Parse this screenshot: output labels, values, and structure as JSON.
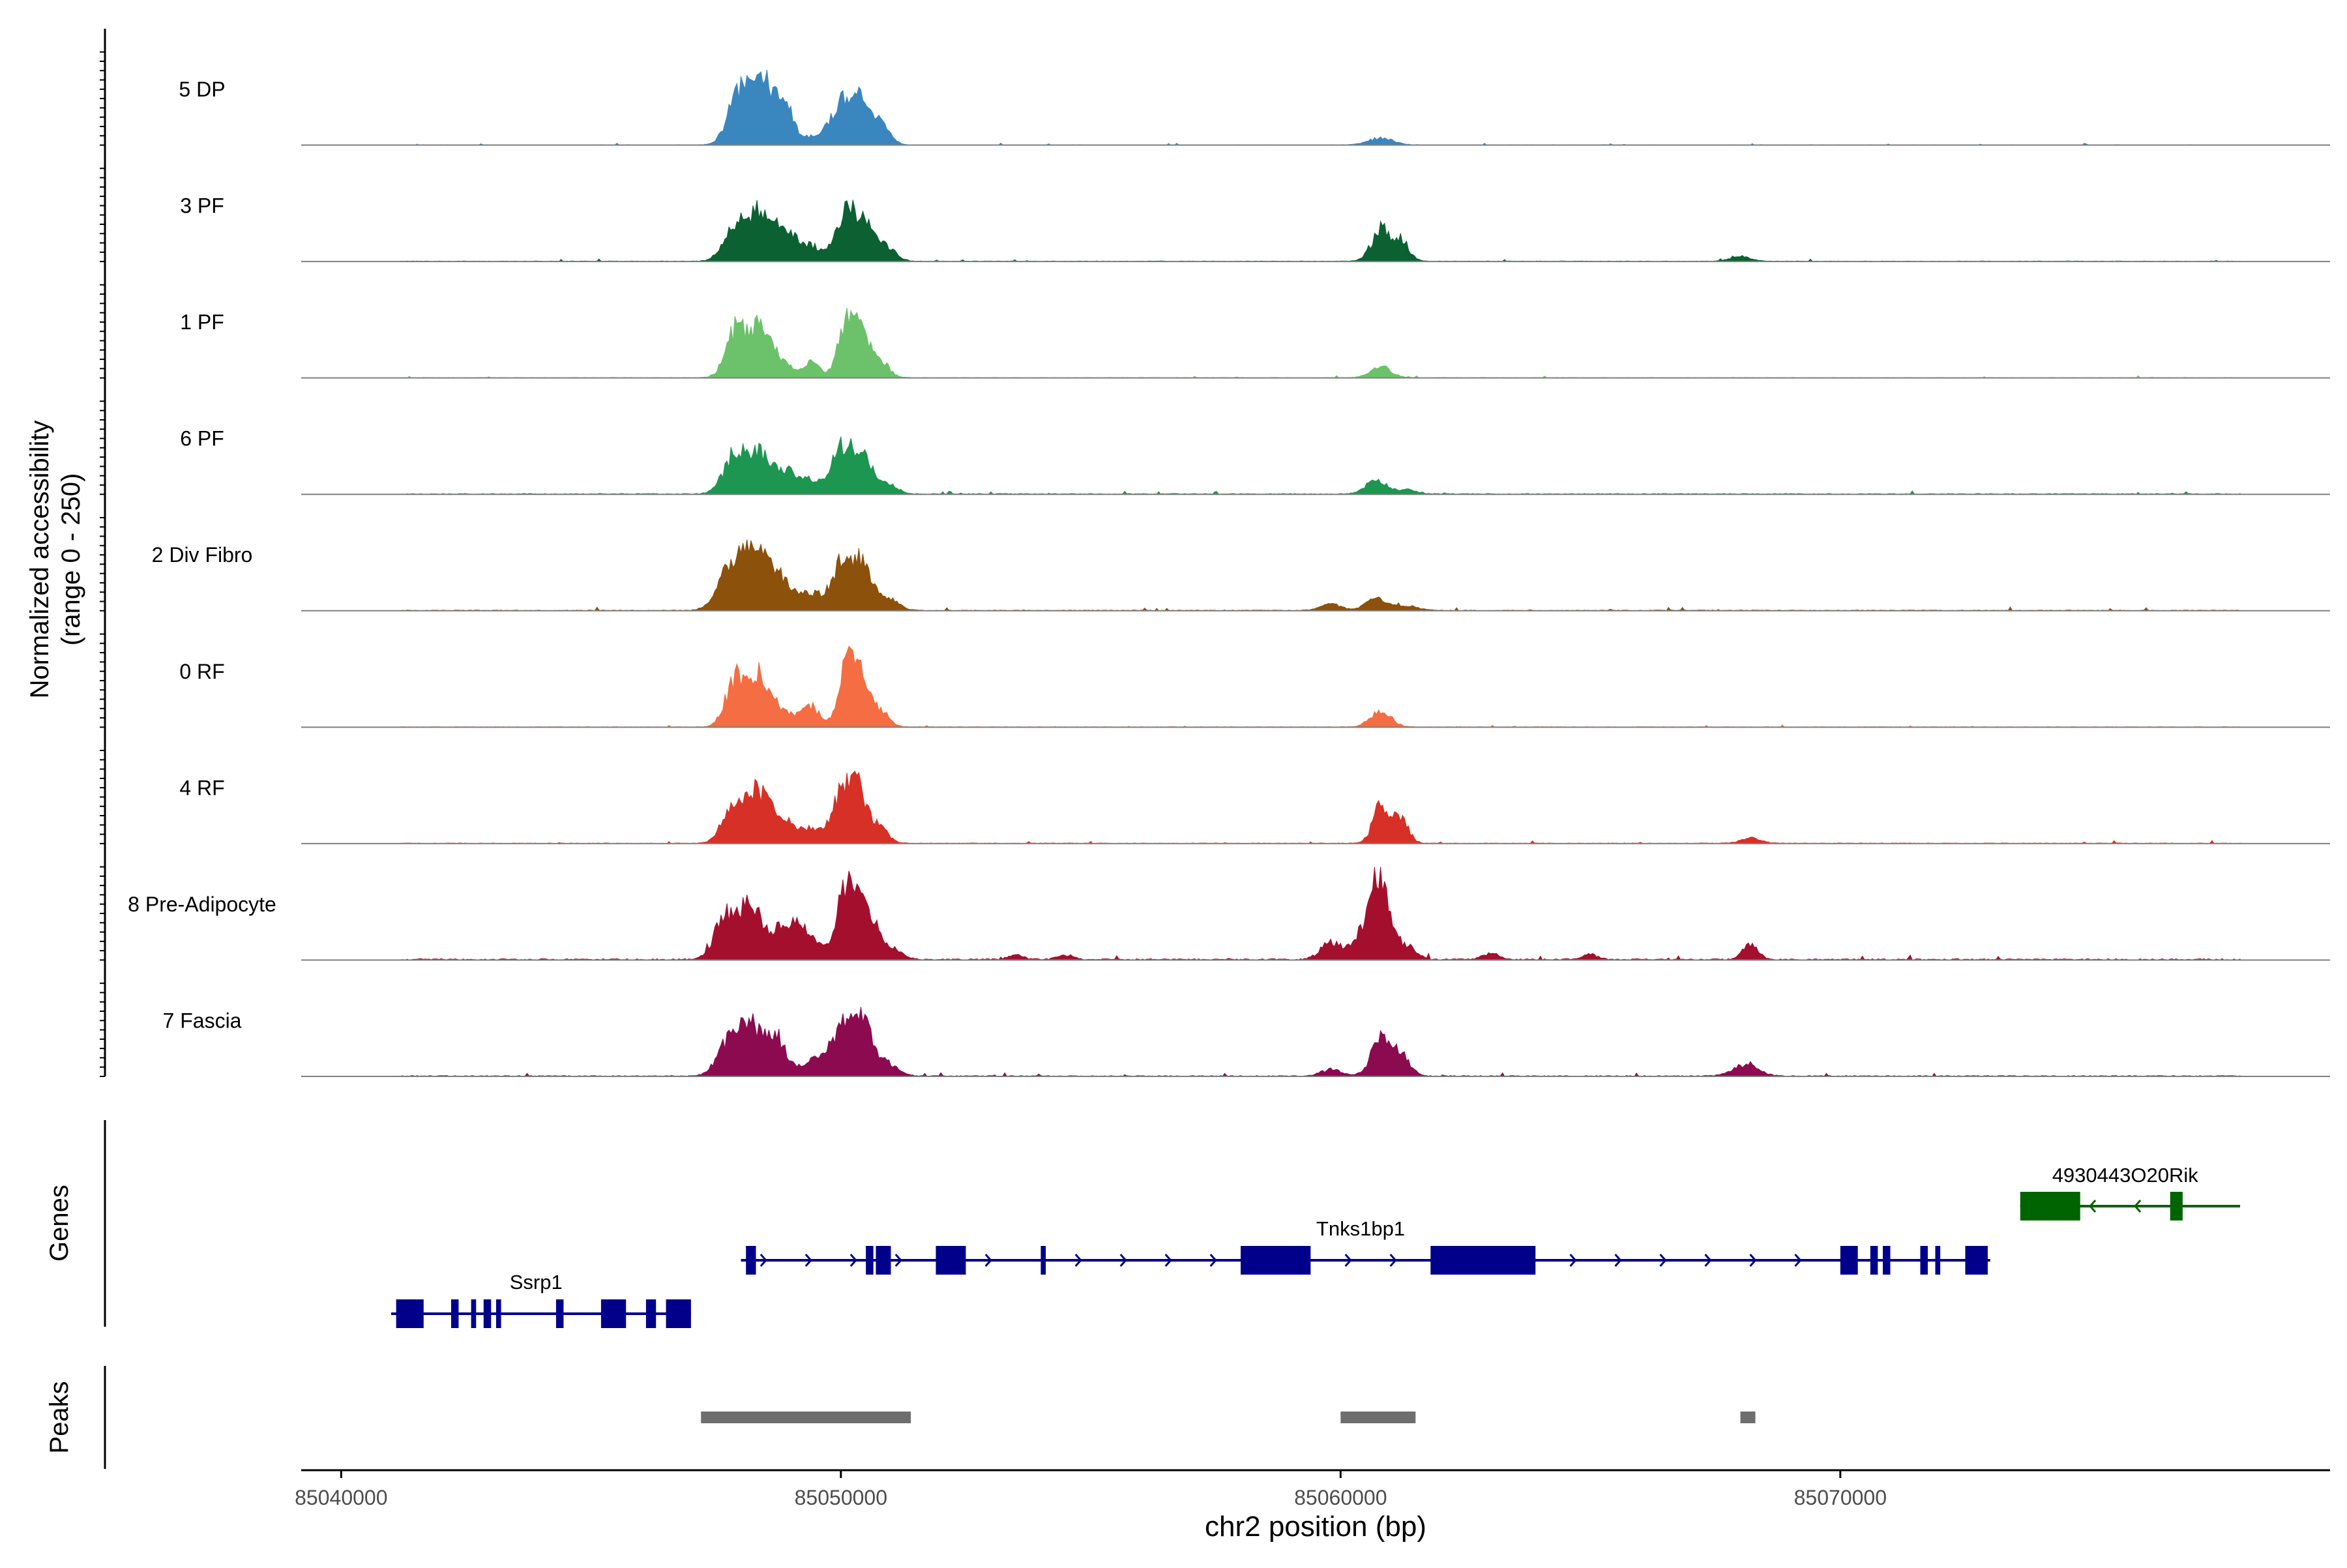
{
  "chart_data": {
    "type": "area",
    "chromosome": "chr2",
    "xlabel": "chr2 position (bp)",
    "xlim": [
      85039200,
      85079800
    ],
    "xticks": [
      85040000,
      85050000,
      85060000,
      85070000
    ],
    "xtick_labels": [
      "85040000",
      "85050000",
      "85060000",
      "85070000"
    ],
    "coverage_ylabel": [
      "Normalized accessibility",
      "(range 0 - 250)"
    ],
    "ylim": [
      0,
      250
    ],
    "genes_label": "Genes",
    "peaks_label": "Peaks",
    "tracks": [
      {
        "name": "5 DP",
        "color": "#3A87C0",
        "noise": 1.2,
        "peaks": [
          [
            85048000,
            150,
            230
          ],
          [
            85048500,
            160,
            230
          ],
          [
            85048900,
            85,
            160
          ],
          [
            85049500,
            25,
            250
          ],
          [
            85050000,
            100,
            200
          ],
          [
            85050400,
            110,
            200
          ],
          [
            85050800,
            50,
            180
          ],
          [
            85060800,
            18,
            250
          ]
        ]
      },
      {
        "name": "3 PF",
        "color": "#0B6131",
        "noise": 1.6,
        "peaks": [
          [
            85047900,
            100,
            230
          ],
          [
            85048400,
            125,
            220
          ],
          [
            85048900,
            80,
            200
          ],
          [
            85049400,
            40,
            220
          ],
          [
            85050100,
            130,
            200
          ],
          [
            85050500,
            85,
            200
          ],
          [
            85050900,
            35,
            200
          ],
          [
            85060800,
            85,
            180
          ],
          [
            85061200,
            55,
            160
          ],
          [
            85068000,
            12,
            200
          ]
        ]
      },
      {
        "name": "1 PF",
        "color": "#6CC26A",
        "noise": 1.4,
        "peaks": [
          [
            85047900,
            130,
            200
          ],
          [
            85048400,
            140,
            200
          ],
          [
            85048800,
            40,
            200
          ],
          [
            85049400,
            40,
            170
          ],
          [
            85050100,
            145,
            160
          ],
          [
            85050400,
            120,
            170
          ],
          [
            85050800,
            40,
            170
          ],
          [
            85060800,
            30,
            200
          ]
        ]
      },
      {
        "name": "6 PF",
        "color": "#1C9650",
        "noise": 2.4,
        "peaks": [
          [
            85047900,
            110,
            230
          ],
          [
            85048400,
            100,
            220
          ],
          [
            85048900,
            55,
            200
          ],
          [
            85049400,
            35,
            220
          ],
          [
            85050000,
            115,
            190
          ],
          [
            85050400,
            110,
            190
          ],
          [
            85050900,
            30,
            200
          ],
          [
            85060700,
            38,
            200
          ],
          [
            85061300,
            12,
            200
          ]
        ]
      },
      {
        "name": "2 Div Fibro",
        "color": "#8C510A",
        "noise": 2.2,
        "peaks": [
          [
            85047800,
            120,
            250
          ],
          [
            85048300,
            155,
            240
          ],
          [
            85048800,
            80,
            220
          ],
          [
            85049400,
            45,
            220
          ],
          [
            85050000,
            115,
            200
          ],
          [
            85050400,
            120,
            200
          ],
          [
            85050900,
            35,
            220
          ],
          [
            85059800,
            18,
            200
          ],
          [
            85060700,
            32,
            200
          ],
          [
            85061300,
            12,
            250
          ]
        ]
      },
      {
        "name": "0 RF",
        "color": "#F46D43",
        "noise": 1.4,
        "peaks": [
          [
            85047900,
            130,
            200
          ],
          [
            85048400,
            135,
            200
          ],
          [
            85048900,
            40,
            200
          ],
          [
            85049400,
            55,
            170
          ],
          [
            85050100,
            160,
            160
          ],
          [
            85050400,
            125,
            170
          ],
          [
            85050800,
            40,
            170
          ],
          [
            85060800,
            45,
            200
          ]
        ]
      },
      {
        "name": "4 RF",
        "color": "#D73027",
        "noise": 1.8,
        "peaks": [
          [
            85047900,
            120,
            230
          ],
          [
            85048400,
            125,
            220
          ],
          [
            85048900,
            50,
            200
          ],
          [
            85049400,
            40,
            220
          ],
          [
            85050000,
            115,
            190
          ],
          [
            85050300,
            140,
            170
          ],
          [
            85050700,
            50,
            200
          ],
          [
            85060800,
            95,
            160
          ],
          [
            85061200,
            70,
            150
          ],
          [
            85068200,
            14,
            200
          ]
        ]
      },
      {
        "name": "8 Pre-Adipocyte",
        "color": "#A50F2E",
        "noise": 3.5,
        "peaks": [
          [
            85047700,
            115,
            220
          ],
          [
            85048200,
            150,
            200
          ],
          [
            85048700,
            70,
            200
          ],
          [
            85049100,
            95,
            180
          ],
          [
            85049500,
            45,
            180
          ],
          [
            85050100,
            190,
            180
          ],
          [
            85050500,
            140,
            200
          ],
          [
            85051000,
            30,
            200
          ],
          [
            85059800,
            45,
            200
          ],
          [
            85060400,
            60,
            200
          ],
          [
            85060800,
            230,
            180
          ],
          [
            85061300,
            35,
            200
          ],
          [
            85068200,
            40,
            150
          ],
          [
            85053500,
            12,
            150
          ],
          [
            85054500,
            12,
            150
          ],
          [
            85063000,
            18,
            150
          ],
          [
            85065000,
            14,
            150
          ]
        ]
      },
      {
        "name": "7 Fascia",
        "color": "#8B0A50",
        "noise": 2.5,
        "peaks": [
          [
            85047800,
            90,
            250
          ],
          [
            85048200,
            110,
            240
          ],
          [
            85048700,
            100,
            220
          ],
          [
            85049500,
            45,
            240
          ],
          [
            85050000,
            110,
            200
          ],
          [
            85050400,
            150,
            200
          ],
          [
            85050900,
            35,
            220
          ],
          [
            85059800,
            18,
            200
          ],
          [
            85060800,
            90,
            200
          ],
          [
            85061200,
            55,
            180
          ],
          [
            85068100,
            30,
            250
          ]
        ]
      }
    ],
    "genes": [
      {
        "name": "Ssrp1",
        "color": "#00008B",
        "strand": "+",
        "start": 85041000,
        "end": 85047000,
        "exons": [
          [
            85041100,
            85041650
          ],
          [
            85042200,
            85042350
          ],
          [
            85042600,
            85042700
          ],
          [
            85042850,
            85043000
          ],
          [
            85043100,
            85043200
          ],
          [
            85044300,
            85044450
          ],
          [
            85045200,
            85045700
          ],
          [
            85046100,
            85046300
          ],
          [
            85046500,
            85047000
          ]
        ]
      },
      {
        "name": "Tnks1bp1",
        "color": "#00008B",
        "strand": "+",
        "start": 85048000,
        "end": 85073000,
        "exons": [
          [
            85048100,
            85048300
          ],
          [
            85050500,
            85050650
          ],
          [
            85050700,
            85051000
          ],
          [
            85051900,
            85052500
          ],
          [
            85054000,
            85054100
          ],
          [
            85058000,
            85059400
          ],
          [
            85061800,
            85063900
          ],
          [
            85070000,
            85070350
          ],
          [
            85070600,
            85070750
          ],
          [
            85070850,
            85071000
          ],
          [
            85071600,
            85071750
          ],
          [
            85071900,
            85072000
          ],
          [
            85072500,
            85072950
          ]
        ]
      },
      {
        "name": "4930443O20Rik",
        "color": "#006400",
        "strand": "-",
        "start": 85073600,
        "end": 85078000,
        "exons": [
          [
            85073600,
            85074800
          ],
          [
            85076600,
            85076850
          ]
        ]
      }
    ],
    "peaks": [
      [
        85047200,
        85051400
      ],
      [
        85060000,
        85061500
      ],
      [
        85068000,
        85068300
      ]
    ]
  }
}
